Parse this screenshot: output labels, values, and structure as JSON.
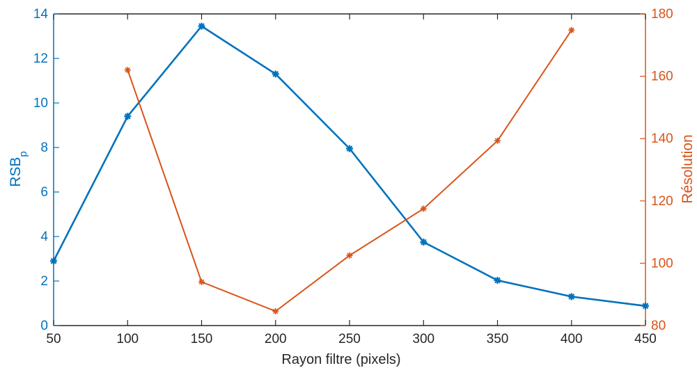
{
  "colors": {
    "left_axis": "#0072BD",
    "right_axis": "#D95319",
    "axis": "#262626",
    "background": "#ffffff"
  },
  "chart_data": {
    "type": "line",
    "title": "",
    "xlabel": "Rayon filtre (pixels)",
    "ylabel_left": {
      "main": "RSB",
      "subscript": "p"
    },
    "ylabel_right": "Résolution",
    "xlim": [
      50,
      450
    ],
    "ylim_left": [
      0,
      14
    ],
    "ylim_right": [
      80,
      180
    ],
    "xticks": [
      50,
      100,
      150,
      200,
      250,
      300,
      350,
      400,
      450
    ],
    "yticks_left": [
      0,
      2,
      4,
      6,
      8,
      10,
      12,
      14
    ],
    "yticks_right": [
      80,
      100,
      120,
      140,
      160,
      180
    ],
    "grid": false,
    "legend": false,
    "series": [
      {
        "axis": "left",
        "color": "#0072BD",
        "marker": "asterisk",
        "x": [
          50,
          100,
          150,
          200,
          250,
          300,
          350,
          400,
          450
        ],
        "values": [
          2.9,
          9.4,
          13.45,
          11.3,
          7.95,
          3.75,
          2.03,
          1.3,
          0.88
        ]
      },
      {
        "axis": "right",
        "color": "#D95319",
        "marker": "asterisk",
        "x": [
          100,
          150,
          200,
          250,
          300,
          350,
          400
        ],
        "values": [
          162,
          94,
          84.6,
          102.5,
          117.5,
          139.3,
          174.8
        ]
      }
    ]
  }
}
